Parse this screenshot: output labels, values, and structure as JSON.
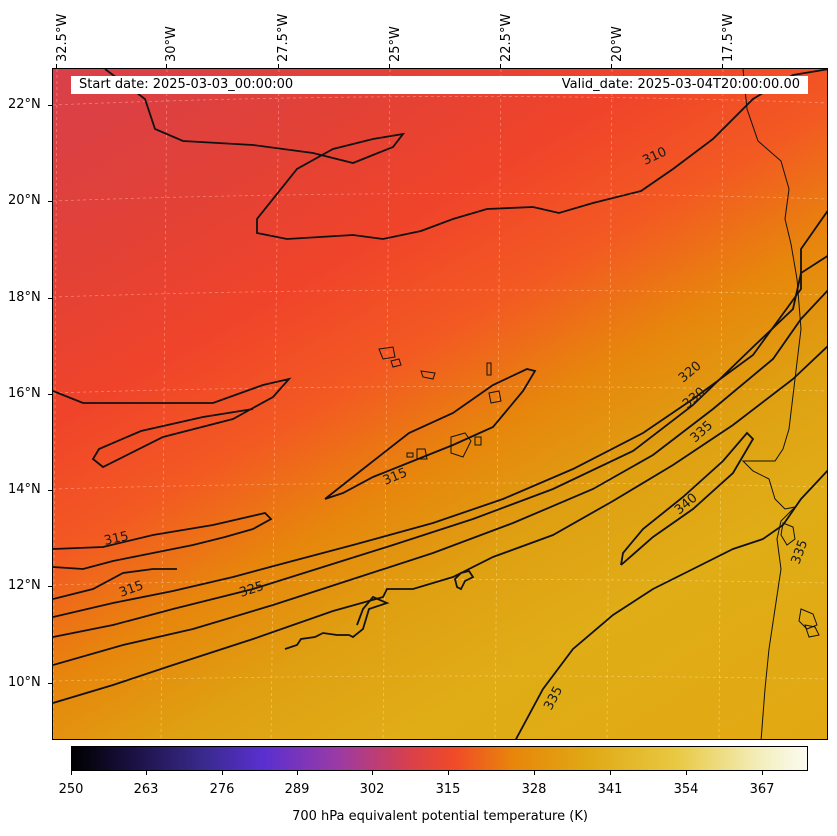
{
  "header": {
    "start_date": "Start date: 2025-03-03_00:00:00",
    "valid_date": "Valid_date: 2025-03-04T20:00:00.00"
  },
  "longitude_labels": [
    "32.5°W",
    "30°W",
    "27.5°W",
    "25°W",
    "22.5°W",
    "20°W",
    "17.5°W"
  ],
  "latitude_labels": [
    "22°N",
    "20°N",
    "18°N",
    "16°N",
    "14°N",
    "12°N",
    "10°N"
  ],
  "contour_labels": [
    "310",
    "315",
    "315",
    "315",
    "320",
    "325",
    "330",
    "335",
    "335",
    "335",
    "340"
  ],
  "colorbar": {
    "ticks": [
      "250",
      "263",
      "276",
      "289",
      "302",
      "315",
      "328",
      "341",
      "354",
      "367"
    ],
    "label": "700 hPa equivalent potential temperature (K)"
  },
  "colors": {
    "low": "#000000",
    "mid": "#f04a28",
    "high": "#fbfbf0",
    "contour": "#111111"
  }
}
